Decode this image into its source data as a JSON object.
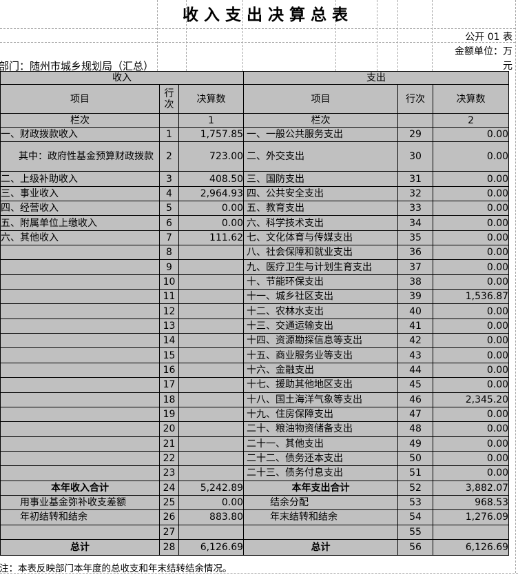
{
  "page": {
    "title": "收入支出决算总表",
    "table_no": "公开 01 表",
    "unit_line1": "金额单位：万",
    "unit_line2": "元",
    "department": "部门：随州市城乡规划局（汇总）",
    "note": "注：本表反映部门本年度的总收支和年末结转结余情况。"
  },
  "colors": {
    "cell_gray": "#c0c0c0",
    "amount_white": "#ffffff",
    "border_black": "#000000",
    "gridline_gray": "#a6a6a6"
  },
  "table": {
    "section_headers": {
      "income": "收入",
      "expenditure": "支出"
    },
    "column_headers": {
      "item": "项目",
      "row_no": "行次",
      "amount": "决算数"
    },
    "column_index": {
      "label": "栏次",
      "income_col": "1",
      "expenditure_col": "2"
    },
    "rows": [
      {
        "left": {
          "item": "一、财政拨款收入",
          "no": "1",
          "amount": "1,757.85"
        },
        "right": {
          "item": "一、一般公共服务支出",
          "no": "29",
          "amount": "0.00"
        }
      },
      {
        "left": {
          "item": "其中：政府性基金预算财政拨款",
          "no": "2",
          "amount": "723.00",
          "kind": "hang"
        },
        "right": {
          "item": "二、外交支出",
          "no": "30",
          "amount": "0.00"
        }
      },
      {
        "left": {
          "item": "二、上级补助收入",
          "no": "3",
          "amount": "408.50"
        },
        "right": {
          "item": "三、国防支出",
          "no": "31",
          "amount": "0.00"
        }
      },
      {
        "left": {
          "item": "三、事业收入",
          "no": "4",
          "amount": "2,964.93"
        },
        "right": {
          "item": "四、公共安全支出",
          "no": "32",
          "amount": "0.00"
        }
      },
      {
        "left": {
          "item": "四、经营收入",
          "no": "5",
          "amount": "0.00"
        },
        "right": {
          "item": "五、教育支出",
          "no": "33",
          "amount": "0.00"
        }
      },
      {
        "left": {
          "item": "五、附属单位上缴收入",
          "no": "6",
          "amount": "0.00"
        },
        "right": {
          "item": "六、科学技术支出",
          "no": "34",
          "amount": "0.00"
        }
      },
      {
        "left": {
          "item": "六、其他收入",
          "no": "7",
          "amount": "111.62"
        },
        "right": {
          "item": "七、文化体育与传媒支出",
          "no": "35",
          "amount": "0.00"
        }
      },
      {
        "left": {
          "item": "",
          "no": "8",
          "amount": ""
        },
        "right": {
          "item": "八、社会保障和就业支出",
          "no": "36",
          "amount": "0.00"
        }
      },
      {
        "left": {
          "item": "",
          "no": "9",
          "amount": ""
        },
        "right": {
          "item": "九、医疗卫生与计划生育支出",
          "no": "37",
          "amount": "0.00"
        }
      },
      {
        "left": {
          "item": "",
          "no": "10",
          "amount": ""
        },
        "right": {
          "item": "十、节能环保支出",
          "no": "38",
          "amount": "0.00"
        }
      },
      {
        "left": {
          "item": "",
          "no": "11",
          "amount": ""
        },
        "right": {
          "item": "十一、城乡社区支出",
          "no": "39",
          "amount": "1,536.87"
        }
      },
      {
        "left": {
          "item": "",
          "no": "12",
          "amount": ""
        },
        "right": {
          "item": "十二、农林水支出",
          "no": "40",
          "amount": "0.00"
        }
      },
      {
        "left": {
          "item": "",
          "no": "13",
          "amount": ""
        },
        "right": {
          "item": "十三、交通运输支出",
          "no": "41",
          "amount": "0.00"
        }
      },
      {
        "left": {
          "item": "",
          "no": "14",
          "amount": ""
        },
        "right": {
          "item": "十四、资源勘探信息等支出",
          "no": "42",
          "amount": "0.00"
        }
      },
      {
        "left": {
          "item": "",
          "no": "15",
          "amount": ""
        },
        "right": {
          "item": "十五、商业服务业等支出",
          "no": "43",
          "amount": "0.00"
        }
      },
      {
        "left": {
          "item": "",
          "no": "16",
          "amount": ""
        },
        "right": {
          "item": "十六、金融支出",
          "no": "44",
          "amount": "0.00"
        }
      },
      {
        "left": {
          "item": "",
          "no": "17",
          "amount": ""
        },
        "right": {
          "item": "十七、援助其他地区支出",
          "no": "45",
          "amount": "0.00"
        }
      },
      {
        "left": {
          "item": "",
          "no": "18",
          "amount": ""
        },
        "right": {
          "item": "十八、国土海洋气象等支出",
          "no": "46",
          "amount": "2,345.20"
        }
      },
      {
        "left": {
          "item": "",
          "no": "19",
          "amount": ""
        },
        "right": {
          "item": "十九、住房保障支出",
          "no": "47",
          "amount": "0.00"
        }
      },
      {
        "left": {
          "item": "",
          "no": "20",
          "amount": ""
        },
        "right": {
          "item": "二十、粮油物资储备支出",
          "no": "48",
          "amount": "0.00"
        }
      },
      {
        "left": {
          "item": "",
          "no": "21",
          "amount": ""
        },
        "right": {
          "item": "二十一、其他支出",
          "no": "49",
          "amount": "0.00"
        }
      },
      {
        "left": {
          "item": "",
          "no": "22",
          "amount": ""
        },
        "right": {
          "item": "二十二、债务还本支出",
          "no": "50",
          "amount": "0.00"
        }
      },
      {
        "left": {
          "item": "",
          "no": "23",
          "amount": ""
        },
        "right": {
          "item": "二十三、债务付息支出",
          "no": "51",
          "amount": "0.00"
        }
      },
      {
        "left": {
          "item": "本年收入合计",
          "no": "24",
          "amount": "5,242.89",
          "kind": "total"
        },
        "right": {
          "item": "本年支出合计",
          "no": "52",
          "amount": "3,882.07",
          "kind": "total"
        }
      },
      {
        "left": {
          "item": "用事业基金弥补收支差额",
          "no": "25",
          "amount": "0.00",
          "kind": "indent"
        },
        "right": {
          "item": "结余分配",
          "no": "53",
          "amount": "968.53",
          "kind": "indent"
        }
      },
      {
        "left": {
          "item": "年初结转和结余",
          "no": "26",
          "amount": "883.80",
          "kind": "indent"
        },
        "right": {
          "item": "年末结转和结余",
          "no": "54",
          "amount": "1,276.09",
          "kind": "indent"
        }
      },
      {
        "left": {
          "item": "",
          "no": "27",
          "amount": ""
        },
        "right": {
          "item": "",
          "no": "55",
          "amount": ""
        }
      },
      {
        "left": {
          "item": "总计",
          "no": "28",
          "amount": "6,126.69",
          "kind": "total"
        },
        "right": {
          "item": "总计",
          "no": "56",
          "amount": "6,126.69",
          "kind": "total"
        }
      }
    ]
  }
}
